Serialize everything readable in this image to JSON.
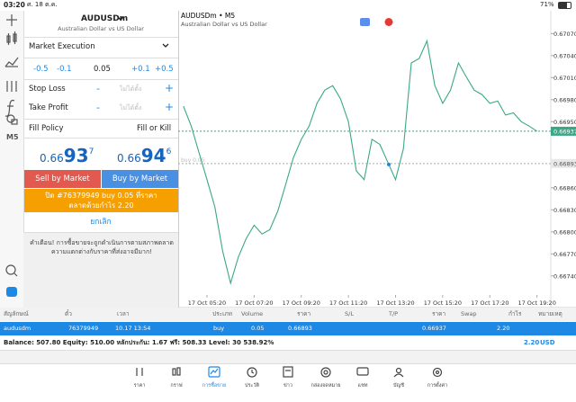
{
  "status_bar": {
    "time": "03:20",
    "date": "ศ. 18 ต.ค.",
    "battery": "71%"
  },
  "toolbar": {
    "timeframe": "M5"
  },
  "order_panel": {
    "symbol": "AUDUSDm",
    "description": "Australian Dollar vs US Dollar",
    "execution": "Market Execution",
    "volume_minus": [
      "-0.5",
      "-0.1"
    ],
    "volume": "0.05",
    "volume_plus": [
      "+0.1",
      "+0.5"
    ],
    "stop_loss": {
      "label": "Stop Loss",
      "minus": "-",
      "value": "ไม่ได้ตั้ง",
      "plus": "+"
    },
    "take_profit": {
      "label": "Take Profit",
      "minus": "-",
      "value": "ไม่ได้ตั้ง",
      "plus": "+"
    },
    "fill_policy": {
      "label": "Fill Policy",
      "value": "Fill or Kill"
    },
    "bid": {
      "head": "0.66",
      "big": "93",
      "tail": "7"
    },
    "ask": {
      "head": "0.66",
      "big": "94",
      "tail": "6"
    },
    "sell_button": "Sell by Market",
    "buy_button": "Buy by Market",
    "close_button": "ปิด #76379949 buy 0.05 ที่ราคาตลาดด้วยกำไร 2.20",
    "cancel": "ยกเลิก",
    "warning": "คำเตือน! การซื้อขายจะถูกดำเนินการตามสภาพตลาด ความแตกต่างกับราคาที่ส่งอาจมีมาก!"
  },
  "chart": {
    "type": "line",
    "symbol": "AUDUSDm • M5",
    "description": "Australian Dollar vs US Dollar",
    "color": "#3aa887",
    "categories": [
      null,
      null,
      null,
      "17 Oct 05:20",
      null,
      null,
      null,
      null,
      null,
      "17 Oct 07:20",
      null,
      null,
      null,
      null,
      null,
      "17 Oct 09:20",
      null,
      null,
      null,
      null,
      null,
      "17 Oct 11:20",
      null,
      null,
      null,
      null,
      null,
      "17 Oct 13:20",
      null,
      null,
      null,
      null,
      null,
      "17 Oct 15:20",
      null,
      null,
      null,
      null,
      null,
      "17 Oct 17:20",
      null,
      null,
      null,
      null,
      null,
      "17 Oct 19:20"
    ],
    "values": [
      0.66971,
      0.66944,
      0.66907,
      0.66871,
      0.66834,
      0.66773,
      0.6673,
      0.66766,
      0.66791,
      0.66809,
      0.66797,
      0.66803,
      0.66828,
      0.66864,
      0.66901,
      0.66926,
      0.66944,
      0.66975,
      0.66993,
      0.66999,
      0.66981,
      0.6695,
      0.66883,
      0.66871,
      0.66926,
      0.66919,
      0.66895,
      0.66871,
      0.66913,
      0.6703,
      0.67036,
      0.6706,
      0.66999,
      0.66975,
      0.66993,
      0.6703,
      0.67011,
      0.66993,
      0.66987,
      0.66975,
      0.66978,
      0.66959,
      0.66962,
      0.6695,
      0.66944,
      0.66937
    ],
    "ylim": [
      0.66714,
      0.67101
    ],
    "yticks": [
      {
        "value": 0.6707,
        "label": "0.67070"
      },
      {
        "value": 0.6704,
        "label": "0.67040"
      },
      {
        "value": 0.6701,
        "label": "0.67010"
      },
      {
        "value": 0.6698,
        "label": "0.66980"
      },
      {
        "value": 0.6695,
        "label": "0.66950"
      },
      {
        "value": 0.6686,
        "label": "0.66860"
      },
      {
        "value": 0.6683,
        "label": "0.66830"
      },
      {
        "value": 0.668,
        "label": "0.66800"
      },
      {
        "value": 0.6677,
        "label": "0.66770"
      },
      {
        "value": 0.6674,
        "label": "0.66740"
      }
    ],
    "bid_line": 0.66937,
    "order_line": 0.66893,
    "order_label": "buy 0.05"
  },
  "trades": {
    "columns": [
      "สัญลักษณ์",
      "ตั๋ว",
      "เวลา",
      "ประเภท",
      "Volume",
      "ราคา",
      "S/L",
      "T/P",
      "ราคา",
      "Swap",
      "กำไร",
      "หมายเหตุ"
    ],
    "row": {
      "symbol": "audusdm",
      "ticket": "76379949",
      "time": "10.17 13:54",
      "type": "buy",
      "volume": "0.05",
      "open_price": "0.66893",
      "price": "0.66937",
      "profit": "2.20"
    },
    "balance": "Balance: 507.80 Equity: 510.00 หลักประกัน: 1.67 ฟรี: 508.33 Level: 30 538.92%",
    "total": "2.20",
    "currency": "USD"
  },
  "tabs": [
    "ราคา",
    "กราฟ",
    "การซื้อขาย",
    "ประวัติ",
    "ข่าว",
    "กล่องจดหมาย",
    "แชท",
    "บัญชี",
    "การตั้งค่า"
  ]
}
